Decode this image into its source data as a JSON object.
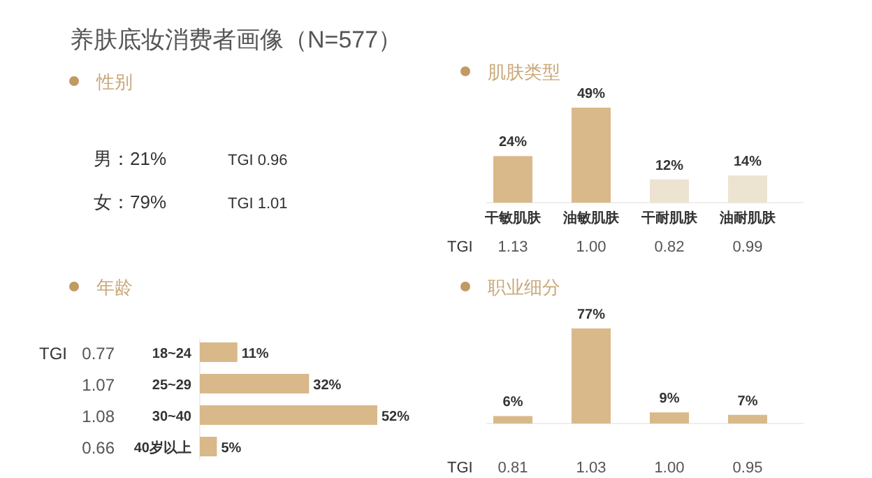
{
  "chart_data": [
    {
      "type": "other",
      "title": "养肤底妆消费者画像（N=577）",
      "subtitle": "性别",
      "annotations": [
        "男：21%",
        "TGI 0.96",
        "女：79%",
        "TGI 1.01"
      ]
    },
    {
      "type": "bar",
      "subtitle": "肌肤类型",
      "categories": [
        "干敏肌肤",
        "油敏肌肤",
        "干耐肌肤",
        "油耐肌肤"
      ],
      "values": [
        24,
        49,
        12,
        14
      ],
      "colors": [
        "#d9b98a",
        "#d9b98a",
        "#ece3d1",
        "#ece3d1"
      ],
      "value_labels": [
        "24%",
        "49%",
        "12%",
        "14%"
      ],
      "annotations": [
        "TGI",
        "1.13",
        "1.00",
        "0.82",
        "0.99"
      ]
    },
    {
      "type": "bar",
      "orientation": "horizontal",
      "subtitle": "年龄",
      "categories": [
        "18~24",
        "25~29",
        "30~40",
        "40岁以上"
      ],
      "values": [
        11,
        32,
        52,
        5
      ],
      "colors": [
        "#d9b98a",
        "#d9b98a",
        "#d9b98a",
        "#d9b98a"
      ],
      "value_labels": [
        "11%",
        "32%",
        "52%",
        "5%"
      ],
      "annotations": [
        "TGI",
        "0.77",
        "1.07",
        "1.08",
        "0.66"
      ]
    },
    {
      "type": "bar",
      "subtitle": "职业细分",
      "categories": [
        null,
        null,
        null,
        null
      ],
      "values": [
        6,
        77,
        9,
        7
      ],
      "colors": [
        "#d9b98a",
        "#d9b98a",
        "#d9b98a",
        "#d9b98a"
      ],
      "value_labels": [
        "6%",
        "77%",
        "9%",
        "7%"
      ],
      "annotations": [
        "TGI",
        "0.81",
        "1.03",
        "1.00",
        "0.95"
      ]
    }
  ]
}
